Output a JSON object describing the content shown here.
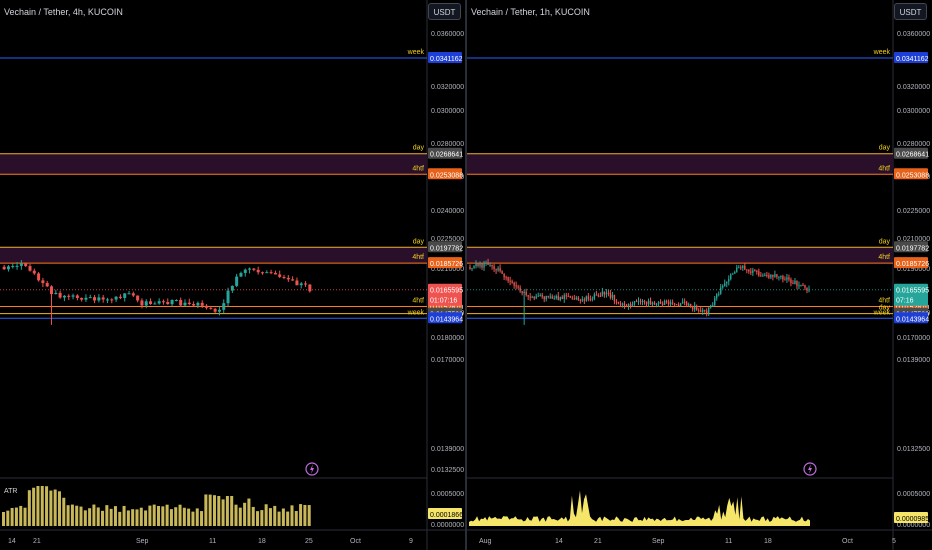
{
  "colors": {
    "background": "#000000",
    "up": "#26a69a",
    "down": "#ef5350",
    "atr_left": "#c9b85a",
    "atr_right": "#f5e66a",
    "week_line": "#2962ff",
    "day_line": "#f0b429",
    "htf_line": "#ff7a1a",
    "zone_fill": "#2a0f2a",
    "price_line": "#ef5350"
  },
  "panes": [
    {
      "id": "left",
      "title": "Vechain / Tether, 4h, KUCOIN",
      "currency_button": "USDT",
      "price_axis_ticks": [
        "0.0360000",
        "0.0320000",
        "0.0300000",
        "0.0280000",
        "0.0260000",
        "0.0240000",
        "0.0225000",
        "0.0210000",
        "0.0190000",
        "0.0180000",
        "0.0170000",
        "0.0139000",
        "0.0132500"
      ],
      "level_tags": [
        {
          "label": "week",
          "value": "0.0341162",
          "kind": "week"
        },
        {
          "label": "day",
          "value": "0.0268641",
          "kind": "day"
        },
        {
          "label": "4htf",
          "value": "0.0253088",
          "kind": "htf"
        },
        {
          "label": "day",
          "value": "0.0197782",
          "kind": "day"
        },
        {
          "label": "4htf",
          "value": "0.0185726",
          "kind": "htf"
        },
        {
          "label": "4htf",
          "value": "0.0152870",
          "kind": "htf"
        },
        {
          "label": "",
          "value": "0.0147509",
          "kind": "day"
        },
        {
          "label": "week",
          "value": "0.0143964",
          "kind": "week"
        }
      ],
      "current_price": {
        "value": "0.0165595",
        "countdown": "01:07:16",
        "color": "#ef5350"
      },
      "indicator": {
        "name": "ATR",
        "ticks": [
          "0.0005000",
          "0.0000000"
        ],
        "current": "0.0001866"
      },
      "time_axis": [
        "14",
        "21",
        "Sep",
        "11",
        "18",
        "25",
        "Oct",
        "9"
      ],
      "alert_icon": "lightning-icon"
    },
    {
      "id": "right",
      "title": "Vechain / Tether, 1h, KUCOIN",
      "currency_button": "USDT",
      "price_axis_ticks": [
        "0.0360000",
        "0.0320000",
        "0.0300000",
        "0.0280000",
        "0.0240000",
        "0.0225000",
        "0.0210000",
        "0.0190000",
        "0.0180000",
        "0.0170000",
        "0.0139000",
        "0.0132500"
      ],
      "level_tags": [
        {
          "label": "week",
          "value": "0.0341162",
          "kind": "week"
        },
        {
          "label": "day",
          "value": "0.0268641",
          "kind": "day"
        },
        {
          "label": "4htf",
          "value": "0.0253088",
          "kind": "htf"
        },
        {
          "label": "day",
          "value": "0.0197782",
          "kind": "day"
        },
        {
          "label": "4htf",
          "value": "0.0185726",
          "kind": "htf"
        },
        {
          "label": "4htf",
          "value": "0.0152870",
          "kind": "htf"
        },
        {
          "label": "day",
          "value": "0.0147509",
          "kind": "day"
        },
        {
          "label": "week",
          "value": "0.0143964",
          "kind": "week"
        }
      ],
      "current_price": {
        "value": "0.0165595",
        "countdown": "07:16",
        "color": "#26a69a"
      },
      "indicator": {
        "name": "",
        "ticks": [
          "0.0005000",
          "0.0000000"
        ],
        "current": "0.0000985"
      },
      "time_axis": [
        "Aug",
        "14",
        "21",
        "Sep",
        "11",
        "18",
        "Oct",
        "5"
      ],
      "alert_icon": "lightning-icon"
    }
  ]
}
